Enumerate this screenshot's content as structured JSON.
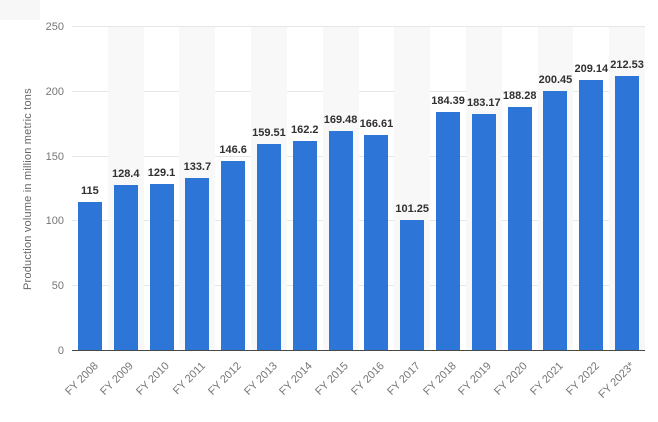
{
  "chart_data": {
    "type": "bar",
    "title": "",
    "ylabel": "Production volume in million metric tons",
    "xlabel": "",
    "ylim": [
      0,
      250
    ],
    "yticks": [
      "0",
      "50",
      "100",
      "150",
      "200",
      "250"
    ],
    "grid": true,
    "legend": "none",
    "bar_color": "#2d76d8",
    "band_color": "#f8f8f8",
    "categories": [
      "FY 2008",
      "FY 2009",
      "FY 2010",
      "FY 2011",
      "FY 2012",
      "FY 2013",
      "FY 2014",
      "FY 2015",
      "FY 2016",
      "FY 2017",
      "FY 2018",
      "FY 2019",
      "FY 2020",
      "FY 2021",
      "FY 2022",
      "FY 2023*"
    ],
    "values": [
      115,
      128.4,
      129.1,
      133.7,
      146.6,
      159.51,
      162.2,
      169.48,
      166.61,
      101.25,
      184.39,
      183.17,
      188.28,
      200.45,
      209.14,
      212.53
    ],
    "value_labels": [
      "115",
      "128.4",
      "129.1",
      "133.7",
      "146.6",
      "159.51",
      "162.2",
      "169.48",
      "166.61",
      "101.25",
      "184.39",
      "183.17",
      "188.28",
      "200.45",
      "209.14",
      "212.53"
    ]
  }
}
